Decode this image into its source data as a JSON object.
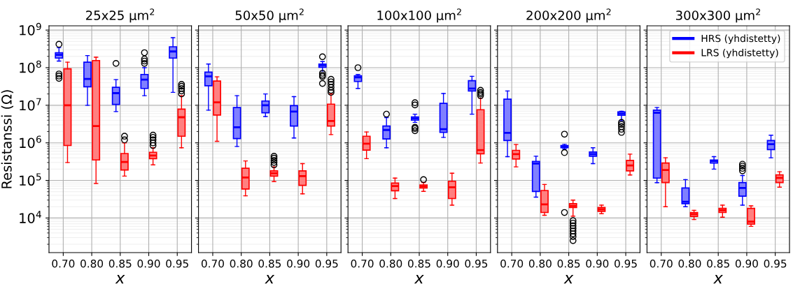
{
  "chart_data": [
    {
      "type": "box",
      "title": "25x25 μm$^{2}$",
      "xlabel": "x",
      "ylabel": "Resistanssi (Ω)",
      "categories": [
        "0.70",
        "0.80",
        "0.85",
        "0.90",
        "0.95"
      ],
      "log": "y",
      "grid": true,
      "ylim": [
        1200,
        1300000000
      ],
      "yticks": [
        {
          "value": 10000,
          "label": "10$^{4}$"
        },
        {
          "value": 100000,
          "label": "10$^{5}$"
        },
        {
          "value": 1000000,
          "label": "10$^{6}$"
        },
        {
          "value": 10000000,
          "label": "10$^{7}$"
        },
        {
          "value": 100000000,
          "label": "10$^{8}$"
        },
        {
          "value": 1000000000,
          "label": "10$^{9}$"
        }
      ],
      "series": [
        {
          "color": "#0000ff",
          "boxes": [
            {
              "low": 150000000.0,
              "q1": 180000000.0,
              "median": 220000000.0,
              "q3": 250000000.0,
              "high": 340000000.0,
              "outliers": [
                420000000.0,
                68000000.0,
                60000000.0,
                52000000.0
              ]
            },
            {
              "low": 10000000.0,
              "q1": 31000000.0,
              "median": 50000000.0,
              "q3": 140000000.0,
              "high": 210000000.0
            },
            {
              "low": 6800000.0,
              "q1": 10500000.0,
              "median": 21000000.0,
              "q3": 30000000.0,
              "high": 48000000.0,
              "outliers": [
                130000000.0
              ]
            },
            {
              "low": 18000000.0,
              "q1": 28000000.0,
              "median": 48000000.0,
              "q3": 66000000.0,
              "high": 100000000.0,
              "outliers": [
                250000000.0,
                170000000.0,
                150000000.0,
                130000000.0
              ]
            },
            {
              "low": 22000000.0,
              "q1": 180000000.0,
              "median": 270000000.0,
              "q3": 360000000.0,
              "high": 630000000.0
            }
          ]
        },
        {
          "color": "#ff0000",
          "boxes": [
            {
              "low": 300000.0,
              "q1": 850000.0,
              "median": 10000000.0,
              "q3": 93000000.0,
              "high": 140000000.0
            },
            {
              "low": 83000.0,
              "q1": 350000.0,
              "median": 2800000.0,
              "q3": 155000000.0,
              "high": 190000000.0
            },
            {
              "low": 130000.0,
              "q1": 190000.0,
              "median": 310000.0,
              "q3": 520000.0,
              "high": 1000000.0,
              "outliers": [
                1500000.0,
                1200000.0
              ]
            },
            {
              "low": 260000.0,
              "q1": 380000.0,
              "median": 460000.0,
              "q3": 560000.0,
              "high": 740000.0,
              "outliers": [
                1600000.0,
                1400000.0,
                1200000.0,
                1000000.0,
                850000.0
              ]
            },
            {
              "low": 740000.0,
              "q1": 1500000.0,
              "median": 4800000.0,
              "q3": 7900000.0,
              "high": 18000000.0,
              "outliers": [
                36000000.0,
                32000000.0,
                28000000.0,
                24000000.0,
                20000000.0
              ]
            }
          ]
        }
      ]
    },
    {
      "type": "box",
      "title": "50x50 μm$^{2}$",
      "xlabel": "x",
      "categories": [
        "0.70",
        "0.80",
        "0.85",
        "0.90",
        "0.95"
      ],
      "log": "y",
      "grid": true,
      "tick_labels": "x",
      "ylim": [
        1200,
        1300000000
      ],
      "yticks": [
        {
          "value": 10000,
          "label": null
        },
        {
          "value": 100000,
          "label": null
        },
        {
          "value": 1000000,
          "label": null
        },
        {
          "value": 10000000,
          "label": null
        },
        {
          "value": 100000000,
          "label": null
        },
        {
          "value": 1000000000,
          "label": null
        }
      ],
      "series": [
        {
          "color": "#0000ff",
          "boxes": [
            {
              "low": 7400000.0,
              "q1": 33000000.0,
              "median": 59000000.0,
              "q3": 76000000.0,
              "high": 125000000.0
            },
            {
              "low": 800000.0,
              "q1": 1300000.0,
              "median": 2600000.0,
              "q3": 8700000.0,
              "high": 18000000.0
            },
            {
              "low": 5000000.0,
              "q1": 6300000.0,
              "median": 10000000.0,
              "q3": 13000000.0,
              "high": 20000000.0
            },
            {
              "low": 1350000.0,
              "q1": 2800000.0,
              "median": 6800000.0,
              "q3": 9800000.0,
              "high": 17000000.0
            },
            {
              "low": 82000000.0,
              "q1": 103000000.0,
              "median": 117000000.0,
              "q3": 125000000.0,
              "high": 145000000.0,
              "outliers": [
                195000000.0,
                71000000.0,
                63000000.0,
                58000000.0,
                38000000.0
              ]
            }
          ]
        },
        {
          "color": "#ff0000",
          "boxes": [
            {
              "low": 1100000.0,
              "q1": 5500000.0,
              "median": 12000000.0,
              "q3": 44000000.0,
              "high": 57000000.0
            },
            {
              "low": 39000.0,
              "q1": 59000.0,
              "median": 120000.0,
              "q3": 210000.0,
              "high": 330000.0
            },
            {
              "low": 93000.0,
              "q1": 130000.0,
              "median": 155000.0,
              "q3": 180000.0,
              "high": 230000.0,
              "outliers": [
                440000.0,
                390000.0,
                340000.0,
                300000.0,
                260000.0
              ]
            },
            {
              "low": 44000.0,
              "q1": 74000.0,
              "median": 130000.0,
              "q3": 180000.0,
              "high": 280000.0
            },
            {
              "low": 1660000.0,
              "q1": 2800000.0,
              "median": 3800000.0,
              "q3": 10700000.0,
              "high": 20000000.0,
              "outliers": [
                49000000.0,
                42000000.0,
                36000000.0,
                30000000.0,
                25000000.0,
                22000000.0
              ]
            }
          ]
        }
      ]
    },
    {
      "type": "box",
      "title": "100x100 μm$^{2}$",
      "xlabel": "x",
      "categories": [
        "0.70",
        "0.80",
        "0.85",
        "0.90",
        "0.95"
      ],
      "log": "y",
      "grid": true,
      "tick_labels": "x",
      "ylim": [
        1200,
        1300000000
      ],
      "yticks": [
        {
          "value": 10000,
          "label": null
        },
        {
          "value": 100000,
          "label": null
        },
        {
          "value": 1000000,
          "label": null
        },
        {
          "value": 10000000,
          "label": null
        },
        {
          "value": 100000000,
          "label": null
        },
        {
          "value": 1000000000,
          "label": null
        }
      ],
      "series": [
        {
          "color": "#0000ff",
          "boxes": [
            {
              "low": 28000000.0,
              "q1": 43000000.0,
              "median": 55000000.0,
              "q3": 61000000.0,
              "high": 66000000.0,
              "outliers": [
                100000000.0
              ]
            },
            {
              "low": 740000.0,
              "q1": 1270000.0,
              "median": 2200000.0,
              "q3": 2800000.0,
              "high": 4700000.0,
              "outliers": [
                5800000.0
              ]
            },
            {
              "low": 3500000.0,
              "q1": 4000000.0,
              "median": 4500000.0,
              "q3": 4900000.0,
              "high": 5800000.0,
              "outliers": [
                11700000.0,
                10200000.0,
                2600000.0,
                2400000.0,
                2100000.0
              ]
            },
            {
              "low": 1400000.0,
              "q1": 1900000.0,
              "median": 2300000.0,
              "q3": 11200000.0,
              "high": 20500000.0
            },
            {
              "low": 5800000.0,
              "q1": 24000000.0,
              "median": 28000000.0,
              "q3": 45000000.0,
              "high": 59000000.0
            }
          ]
        },
        {
          "color": "#ff0000",
          "boxes": [
            {
              "low": 380000.0,
              "q1": 640000.0,
              "median": 950000.0,
              "q3": 1500000.0,
              "high": 1950000.0
            },
            {
              "low": 33000.0,
              "q1": 53000.0,
              "median": 71000.0,
              "q3": 85000.0,
              "high": 115000.0
            },
            {
              "low": 51000.0,
              "q1": 63000.0,
              "median": 69000.0,
              "q3": 76000.0,
              "high": 88000.0,
              "outliers": [
                105000.0
              ]
            },
            {
              "low": 22000.0,
              "q1": 33000.0,
              "median": 66000.0,
              "q3": 95000.0,
              "high": 155000.0
            },
            {
              "low": 290000.0,
              "q1": 510000.0,
              "median": 640000.0,
              "q3": 7600000.0,
              "high": 15500000.0,
              "outliers": [
                25000000.0,
                22000000.0,
                20000000.0,
                18000000.0
              ]
            }
          ]
        }
      ]
    },
    {
      "type": "box",
      "title": "200x200 μm$^{2}$",
      "xlabel": "x",
      "categories": [
        "0.70",
        "0.80",
        "0.85",
        "0.90",
        "0.95"
      ],
      "log": "y",
      "grid": true,
      "tick_labels": "x",
      "ylim": [
        1200,
        1300000000
      ],
      "yticks": [
        {
          "value": 10000,
          "label": null
        },
        {
          "value": 100000,
          "label": null
        },
        {
          "value": 1000000,
          "label": null
        },
        {
          "value": 10000000,
          "label": null
        },
        {
          "value": 100000000,
          "label": null
        },
        {
          "value": 1000000000,
          "label": null
        }
      ],
      "series": [
        {
          "color": "#0000ff",
          "boxes": [
            {
              "low": 430000.0,
              "q1": 1150000.0,
              "median": 1850000.0,
              "q3": 14500000.0,
              "high": 24000000.0
            },
            {
              "low": 36000.0,
              "q1": 51000.0,
              "median": 280000.0,
              "q3": 320000.0,
              "high": 440000.0
            },
            {
              "low": 690000.0,
              "q1": 740000.0,
              "median": 800000.0,
              "q3": 850000.0,
              "high": 910000.0,
              "outliers": [
                1700000.0,
                550000.0,
                14000.0
              ]
            },
            {
              "low": 280000.0,
              "q1": 440000.0,
              "median": 500000.0,
              "q3": 570000.0,
              "high": 740000.0
            },
            {
              "low": 3900000.0,
              "q1": 5400000.0,
              "median": 6000000.0,
              "q3": 6700000.0,
              "high": 6900000.0,
              "outliers": [
                3500000.0,
                3100000.0,
                2700000.0,
                2300000.0,
                1900000.0
              ]
            }
          ]
        },
        {
          "color": "#ff0000",
          "boxes": [
            {
              "low": 230000.0,
              "q1": 370000.0,
              "median": 500000.0,
              "q3": 630000.0,
              "high": 900000.0
            },
            {
              "low": 11800.0,
              "q1": 14000.0,
              "median": 23000.0,
              "q3": 54000.0,
              "high": 78000.0
            },
            {
              "low": 11200.0,
              "q1": 19000.0,
              "median": 21000.0,
              "q3": 24000.0,
              "high": 30000.0,
              "outliers": [
                8500.0,
                7300.0,
                6200.0,
                5300.0,
                4500.0,
                3800.0,
                3200.0,
                2500.0
              ]
            },
            {
              "low": 13000.0,
              "q1": 15000.0,
              "median": 17000.0,
              "q3": 19000.0,
              "high": 22000.0
            },
            {
              "low": 140000.0,
              "q1": 180000.0,
              "median": 250000.0,
              "q3": 340000.0,
              "high": 500000.0
            }
          ]
        }
      ]
    },
    {
      "type": "box",
      "title": "300x300 μm$^{2}$",
      "xlabel": "x",
      "categories": [
        "0.70",
        "0.80",
        "0.85",
        "0.90",
        "0.95"
      ],
      "log": "y",
      "grid": true,
      "tick_labels": "x",
      "legend": "top right",
      "ylim": [
        1200,
        1300000000
      ],
      "yticks": [
        {
          "value": 10000,
          "label": null
        },
        {
          "value": 100000,
          "label": null
        },
        {
          "value": 1000000,
          "label": null
        },
        {
          "value": 10000000,
          "label": null
        },
        {
          "value": 100000000,
          "label": null
        },
        {
          "value": 1000000000,
          "label": null
        }
      ],
      "series": [
        {
          "name": "HRS (yhdistetty)",
          "color": "#0000ff",
          "boxes": [
            {
              "low": 87000.0,
              "q1": 115000.0,
              "median": 6300000.0,
              "q3": 7400000.0,
              "high": 8700000.0
            },
            {
              "low": 20000.0,
              "q1": 24000.0,
              "median": 27000.0,
              "q3": 63000.0,
              "high": 105000.0
            },
            {
              "low": 200000.0,
              "q1": 290000.0,
              "median": 330000.0,
              "q3": 350000.0,
              "high": 430000.0
            },
            {
              "low": 22000.0,
              "q1": 38000.0,
              "median": 63000.0,
              "q3": 88000.0,
              "high": 135000.0,
              "outliers": [
                270000.0,
                240000.0,
                210000.0,
                180000.0
              ]
            },
            {
              "low": 400000.0,
              "q1": 660000.0,
              "median": 920000.0,
              "q3": 1150000.0,
              "high": 1600000.0
            }
          ]
        },
        {
          "name": "LRS (yhdistetty)",
          "color": "#ff0000",
          "boxes": [
            {
              "low": 20000.0,
              "q1": 88000.0,
              "median": 190000.0,
              "q3": 290000.0,
              "high": 400000.0
            },
            {
              "low": 9100.0,
              "q1": 11000.0,
              "median": 12700.0,
              "q3": 14000.0,
              "high": 16000.0
            },
            {
              "low": 10500.0,
              "q1": 14000.0,
              "median": 16000.0,
              "q3": 18000.0,
              "high": 22000.0
            },
            {
              "low": 6000.0,
              "q1": 6900.0,
              "median": 8000.0,
              "q3": 18000.0,
              "high": 21000.0
            },
            {
              "low": 66000.0,
              "q1": 88000.0,
              "median": 117000.0,
              "q3": 140000.0,
              "high": 170000.0
            }
          ]
        }
      ]
    }
  ]
}
